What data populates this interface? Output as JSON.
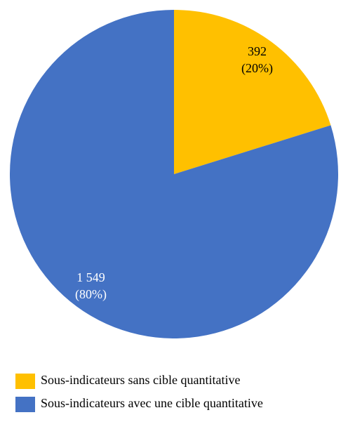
{
  "chart_data": {
    "type": "pie",
    "categories": [
      "Sous-indicateurs sans cible quantitative",
      "Sous-indicateurs avec une cible quantitative"
    ],
    "values": [
      392,
      1549
    ],
    "value_labels": [
      "392",
      "1 549"
    ],
    "percent_labels": [
      "(20%)",
      "(80%)"
    ],
    "colors": [
      "#ffc000",
      "#4472c4"
    ],
    "label_colors": [
      "#000000",
      "#ffffff"
    ],
    "legend": "bottom"
  }
}
